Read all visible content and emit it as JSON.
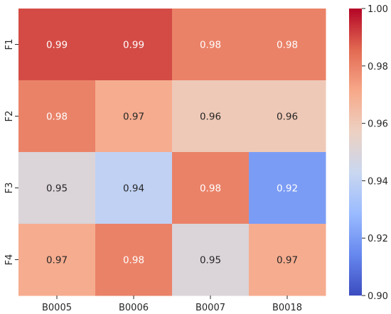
{
  "chart_data": {
    "type": "heatmap",
    "title": "",
    "xlabel": "",
    "ylabel": "",
    "x_categories": [
      "B0005",
      "B0006",
      "B0007",
      "B0018"
    ],
    "y_categories": [
      "F1",
      "F2",
      "F3",
      "F4"
    ],
    "values": [
      [
        0.99,
        0.99,
        0.98,
        0.98
      ],
      [
        0.98,
        0.97,
        0.96,
        0.96
      ],
      [
        0.95,
        0.94,
        0.98,
        0.92
      ],
      [
        0.97,
        0.98,
        0.95,
        0.97
      ]
    ],
    "cell_labels": [
      [
        "0.99",
        "0.99",
        "0.98",
        "0.98"
      ],
      [
        "0.98",
        "0.97",
        "0.96",
        "0.96"
      ],
      [
        "0.95",
        "0.94",
        "0.98",
        "0.92"
      ],
      [
        "0.97",
        "0.98",
        "0.95",
        "0.97"
      ]
    ],
    "colormap": "coolwarm",
    "color_range": [
      0.9,
      1.0
    ],
    "colorbar": {
      "ticks": [
        0.9,
        0.92,
        0.94,
        0.96,
        0.98,
        1.0
      ],
      "tick_labels": [
        "0.90",
        "0.92",
        "0.94",
        "0.96",
        "0.98",
        "1.00"
      ]
    },
    "colors": {
      "coolwarm_stops": [
        "#3b4cc0",
        "#6788ee",
        "#9abbff",
        "#c9d7f0",
        "#edd1c2",
        "#f7a889",
        "#e26952",
        "#b40426"
      ]
    },
    "grid": false,
    "legend": "colorbar-right"
  }
}
